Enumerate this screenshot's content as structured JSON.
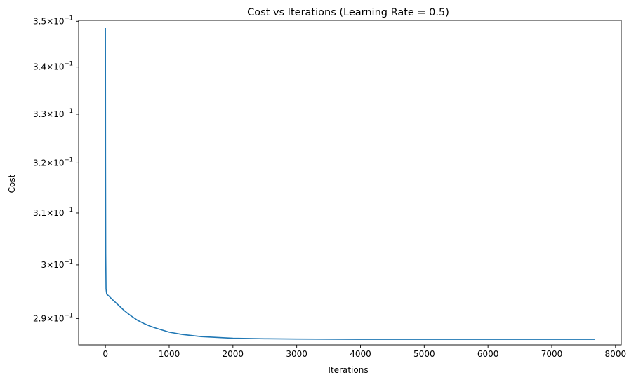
{
  "chart_data": {
    "type": "line",
    "title": "Cost vs Iterations (Learning Rate = 0.5)",
    "xlabel": "Iterations",
    "ylabel": "Cost",
    "y_scale": "log",
    "grid": false,
    "legend": "none",
    "xlim": [
      -420,
      8090
    ],
    "ylim": [
      0.2852,
      0.3502
    ],
    "x_ticks": [
      {
        "value": 0,
        "label": "0"
      },
      {
        "value": 1000,
        "label": "1000"
      },
      {
        "value": 2000,
        "label": "2000"
      },
      {
        "value": 3000,
        "label": "3000"
      },
      {
        "value": 4000,
        "label": "4000"
      },
      {
        "value": 5000,
        "label": "5000"
      },
      {
        "value": 6000,
        "label": "6000"
      },
      {
        "value": 7000,
        "label": "7000"
      },
      {
        "value": 8000,
        "label": "8000"
      }
    ],
    "y_ticks": [
      {
        "value": 0.29,
        "mantissa": "2.9",
        "base": "10",
        "exponent": "−1"
      },
      {
        "value": 0.3,
        "mantissa": "3",
        "base": "10",
        "exponent": "−1"
      },
      {
        "value": 0.31,
        "mantissa": "3.1",
        "base": "10",
        "exponent": "−1"
      },
      {
        "value": 0.32,
        "mantissa": "3.2",
        "base": "10",
        "exponent": "−1"
      },
      {
        "value": 0.33,
        "mantissa": "3.3",
        "base": "10",
        "exponent": "−1"
      },
      {
        "value": 0.34,
        "mantissa": "3.4",
        "base": "10",
        "exponent": "−1"
      },
      {
        "value": 0.35,
        "mantissa": "3.5",
        "base": "10",
        "exponent": "−1"
      }
    ],
    "series": [
      {
        "color": "#1f77b4",
        "x": [
          0,
          2,
          5,
          10,
          20,
          50,
          100,
          200,
          300,
          400,
          500,
          600,
          700,
          800,
          1000,
          1200,
          1500,
          2000,
          2500,
          3000,
          4000,
          5000,
          6000,
          7000,
          7680
        ],
        "y": [
          0.3485,
          0.32,
          0.302,
          0.2955,
          0.2945,
          0.2942,
          0.2936,
          0.2925,
          0.2914,
          0.2905,
          0.2897,
          0.2891,
          0.2886,
          0.2882,
          0.2875,
          0.2871,
          0.2867,
          0.2864,
          0.2863,
          0.28625,
          0.2862,
          0.2862,
          0.2862,
          0.2862,
          0.2862
        ]
      }
    ]
  }
}
